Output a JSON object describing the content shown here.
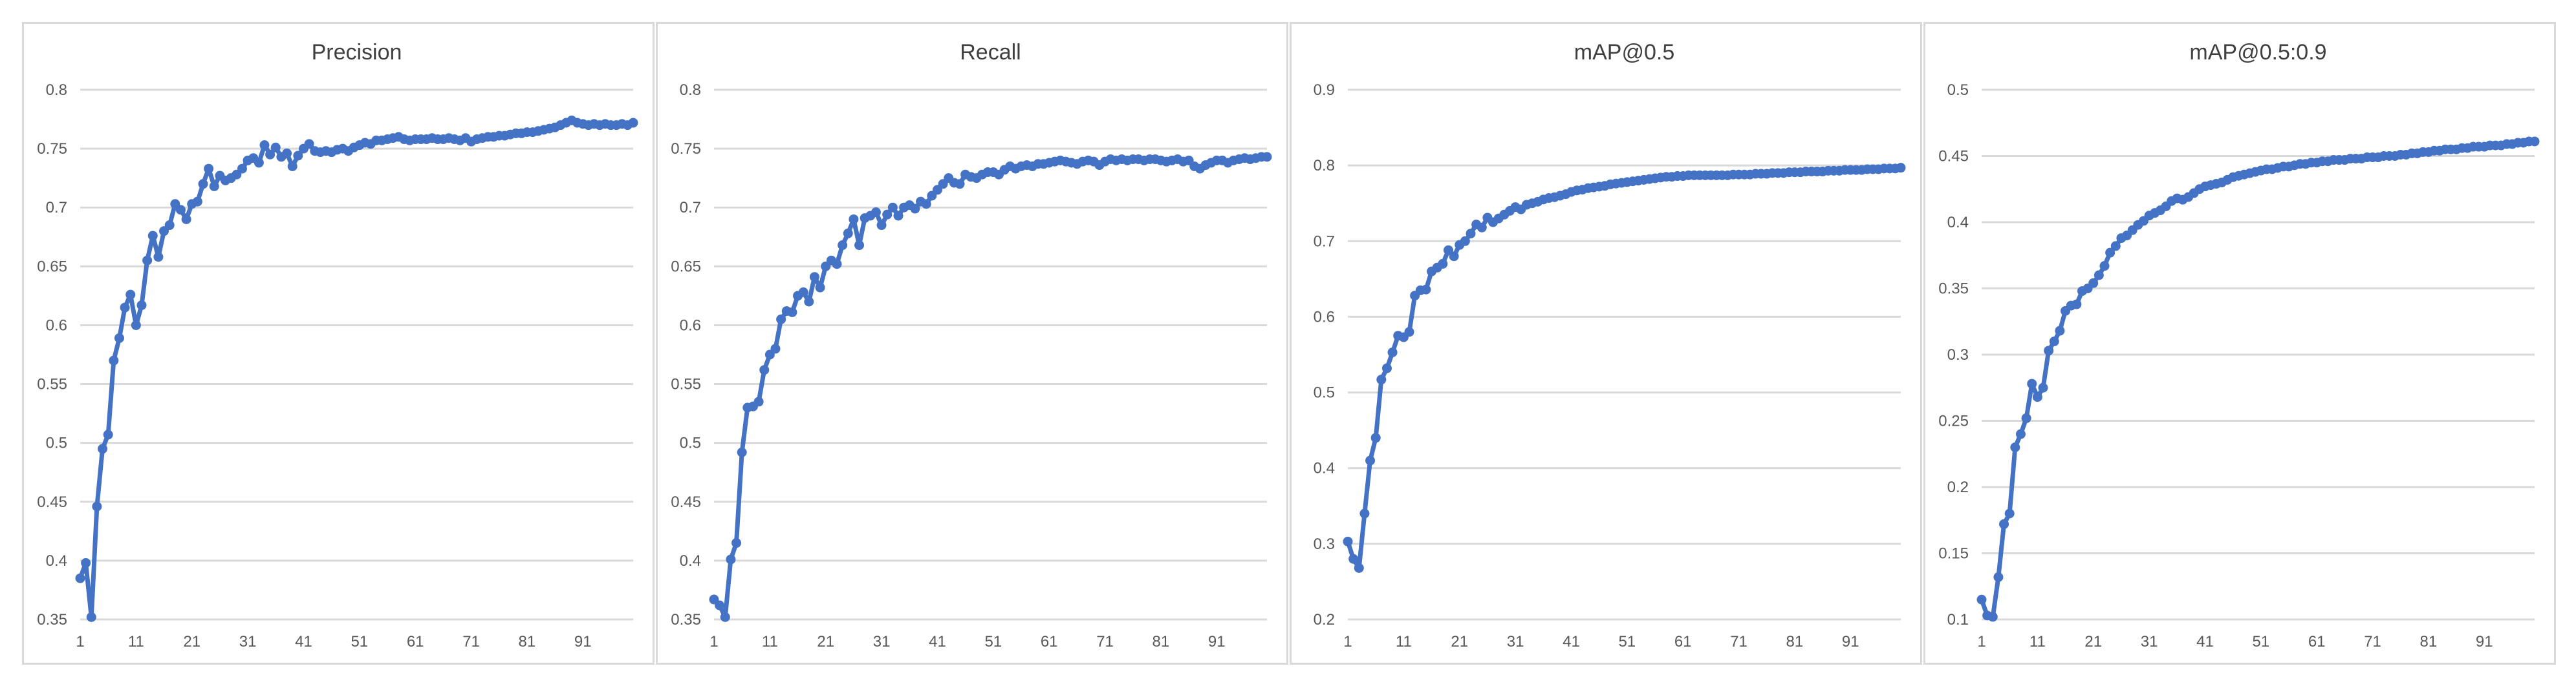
{
  "chart_data": [
    {
      "type": "line",
      "title": "Precision",
      "color": "#4472c4",
      "xlabel": "",
      "ylabel": "",
      "ylim": [
        0.35,
        0.8
      ],
      "yticks": [
        "0.35",
        "0.4",
        "0.45",
        "0.5",
        "0.55",
        "0.6",
        "0.65",
        "0.7",
        "0.75",
        "0.8"
      ],
      "xlim": [
        1,
        100
      ],
      "xticks": [
        "1",
        "11",
        "21",
        "31",
        "41",
        "51",
        "61",
        "71",
        "81",
        "91"
      ],
      "grid": true,
      "legend": "none",
      "series": [
        {
          "values": [
            0.385,
            0.398,
            0.352,
            0.446,
            0.495,
            0.507,
            0.57,
            0.589,
            0.615,
            0.626,
            0.6,
            0.617,
            0.655,
            0.676,
            0.658,
            0.68,
            0.685,
            0.703,
            0.698,
            0.69,
            0.703,
            0.705,
            0.72,
            0.733,
            0.718,
            0.727,
            0.723,
            0.725,
            0.728,
            0.733,
            0.74,
            0.742,
            0.738,
            0.753,
            0.745,
            0.751,
            0.743,
            0.746,
            0.735,
            0.744,
            0.75,
            0.754,
            0.748,
            0.747,
            0.748,
            0.747,
            0.749,
            0.75,
            0.748,
            0.751,
            0.753,
            0.755,
            0.754,
            0.757,
            0.757,
            0.758,
            0.759,
            0.76,
            0.758,
            0.757,
            0.758,
            0.758,
            0.758,
            0.759,
            0.758,
            0.758,
            0.759,
            0.758,
            0.757,
            0.759,
            0.756,
            0.758,
            0.759,
            0.76,
            0.76,
            0.761,
            0.761,
            0.762,
            0.763,
            0.763,
            0.764,
            0.764,
            0.765,
            0.766,
            0.767,
            0.768,
            0.77,
            0.772,
            0.774,
            0.772,
            0.771,
            0.77,
            0.771,
            0.77,
            0.771,
            0.77,
            0.77,
            0.771,
            0.77,
            0.772
          ]
        }
      ]
    },
    {
      "type": "line",
      "title": "Recall",
      "color": "#4472c4",
      "xlabel": "",
      "ylabel": "",
      "ylim": [
        0.35,
        0.8
      ],
      "yticks": [
        "0.35",
        "0.4",
        "0.45",
        "0.5",
        "0.55",
        "0.6",
        "0.65",
        "0.7",
        "0.75",
        "0.8"
      ],
      "xlim": [
        1,
        100
      ],
      "xticks": [
        "1",
        "11",
        "21",
        "31",
        "41",
        "51",
        "61",
        "71",
        "81",
        "91"
      ],
      "grid": true,
      "legend": "none",
      "series": [
        {
          "values": [
            0.367,
            0.362,
            0.352,
            0.401,
            0.415,
            0.492,
            0.53,
            0.531,
            0.535,
            0.562,
            0.575,
            0.58,
            0.605,
            0.612,
            0.611,
            0.625,
            0.628,
            0.62,
            0.641,
            0.632,
            0.65,
            0.655,
            0.652,
            0.668,
            0.678,
            0.69,
            0.668,
            0.691,
            0.693,
            0.696,
            0.685,
            0.694,
            0.7,
            0.693,
            0.7,
            0.702,
            0.699,
            0.705,
            0.703,
            0.71,
            0.715,
            0.72,
            0.725,
            0.721,
            0.72,
            0.728,
            0.726,
            0.725,
            0.728,
            0.73,
            0.73,
            0.728,
            0.732,
            0.735,
            0.733,
            0.735,
            0.736,
            0.735,
            0.737,
            0.737,
            0.738,
            0.739,
            0.74,
            0.739,
            0.738,
            0.737,
            0.739,
            0.74,
            0.739,
            0.736,
            0.739,
            0.741,
            0.74,
            0.741,
            0.74,
            0.741,
            0.741,
            0.74,
            0.741,
            0.741,
            0.74,
            0.739,
            0.74,
            0.741,
            0.739,
            0.74,
            0.735,
            0.733,
            0.736,
            0.738,
            0.74,
            0.74,
            0.738,
            0.74,
            0.741,
            0.742,
            0.741,
            0.742,
            0.743,
            0.743
          ]
        }
      ]
    },
    {
      "type": "line",
      "title": "mAP@0.5",
      "color": "#4472c4",
      "xlabel": "",
      "ylabel": "",
      "ylim": [
        0.2,
        0.9
      ],
      "yticks": [
        "0.2",
        "0.3",
        "0.4",
        "0.5",
        "0.6",
        "0.7",
        "0.8",
        "0.9"
      ],
      "xlim": [
        1,
        100
      ],
      "xticks": [
        "1",
        "11",
        "21",
        "31",
        "41",
        "51",
        "61",
        "71",
        "81",
        "91"
      ],
      "grid": true,
      "legend": "none",
      "series": [
        {
          "values": [
            0.303,
            0.28,
            0.268,
            0.34,
            0.41,
            0.44,
            0.517,
            0.532,
            0.553,
            0.575,
            0.573,
            0.58,
            0.628,
            0.635,
            0.636,
            0.66,
            0.665,
            0.67,
            0.688,
            0.68,
            0.695,
            0.7,
            0.71,
            0.722,
            0.718,
            0.731,
            0.725,
            0.73,
            0.735,
            0.74,
            0.745,
            0.742,
            0.748,
            0.75,
            0.752,
            0.755,
            0.757,
            0.758,
            0.76,
            0.762,
            0.765,
            0.767,
            0.768,
            0.77,
            0.771,
            0.772,
            0.773,
            0.775,
            0.776,
            0.777,
            0.778,
            0.779,
            0.78,
            0.781,
            0.782,
            0.783,
            0.784,
            0.785,
            0.785,
            0.786,
            0.786,
            0.787,
            0.787,
            0.787,
            0.787,
            0.787,
            0.787,
            0.787,
            0.787,
            0.788,
            0.788,
            0.788,
            0.788,
            0.789,
            0.789,
            0.789,
            0.79,
            0.79,
            0.79,
            0.791,
            0.791,
            0.791,
            0.792,
            0.792,
            0.792,
            0.792,
            0.793,
            0.793,
            0.793,
            0.794,
            0.794,
            0.794,
            0.794,
            0.795,
            0.795,
            0.795,
            0.796,
            0.796,
            0.796,
            0.797
          ]
        }
      ]
    },
    {
      "type": "line",
      "title": "mAP@0.5:0.9",
      "color": "#4472c4",
      "xlabel": "",
      "ylabel": "",
      "ylim": [
        0.1,
        0.5
      ],
      "yticks": [
        "0.1",
        "0.15",
        "0.2",
        "0.25",
        "0.3",
        "0.35",
        "0.4",
        "0.45",
        "0.5"
      ],
      "xlim": [
        1,
        100
      ],
      "xticks": [
        "1",
        "11",
        "21",
        "31",
        "41",
        "51",
        "61",
        "71",
        "81",
        "91"
      ],
      "grid": true,
      "legend": "none",
      "series": [
        {
          "values": [
            0.115,
            0.103,
            0.102,
            0.132,
            0.172,
            0.18,
            0.23,
            0.24,
            0.252,
            0.278,
            0.268,
            0.275,
            0.303,
            0.31,
            0.318,
            0.333,
            0.337,
            0.338,
            0.348,
            0.35,
            0.354,
            0.36,
            0.367,
            0.377,
            0.382,
            0.388,
            0.39,
            0.394,
            0.398,
            0.401,
            0.405,
            0.407,
            0.409,
            0.412,
            0.416,
            0.418,
            0.417,
            0.419,
            0.422,
            0.425,
            0.427,
            0.428,
            0.429,
            0.43,
            0.432,
            0.434,
            0.435,
            0.436,
            0.437,
            0.438,
            0.439,
            0.44,
            0.44,
            0.441,
            0.442,
            0.442,
            0.443,
            0.444,
            0.444,
            0.445,
            0.445,
            0.446,
            0.446,
            0.447,
            0.447,
            0.447,
            0.448,
            0.448,
            0.448,
            0.449,
            0.449,
            0.449,
            0.45,
            0.45,
            0.45,
            0.451,
            0.451,
            0.452,
            0.452,
            0.453,
            0.453,
            0.454,
            0.454,
            0.455,
            0.455,
            0.455,
            0.456,
            0.456,
            0.457,
            0.457,
            0.457,
            0.458,
            0.458,
            0.458,
            0.459,
            0.459,
            0.46,
            0.46,
            0.461,
            0.461
          ]
        }
      ]
    }
  ]
}
